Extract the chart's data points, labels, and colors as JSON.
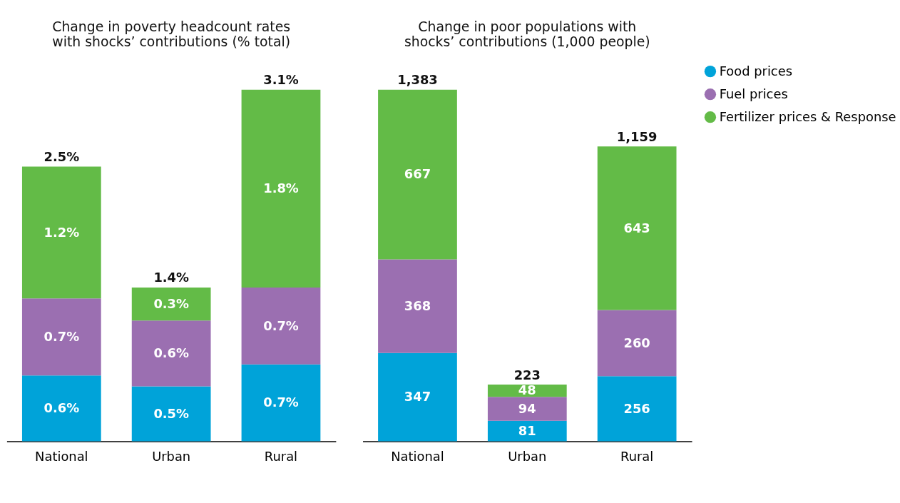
{
  "chart_data": [
    {
      "type": "bar",
      "title": "Change in poverty headcount rates with shocks’ contributions (% total)",
      "categories": [
        "National",
        "Urban",
        "Rural"
      ],
      "stacked": true,
      "legend": false,
      "series": [
        {
          "color": "#00a3d9",
          "values": [
            0.6,
            0.5,
            0.7
          ],
          "value_labels": [
            "0.6%",
            "0.5%",
            "0.7%"
          ]
        },
        {
          "color": "#9b6fb1",
          "values": [
            0.7,
            0.6,
            0.7
          ],
          "value_labels": [
            "0.7%",
            "0.6%",
            "0.7%"
          ]
        },
        {
          "color": "#63bb47",
          "values": [
            1.2,
            0.3,
            1.8
          ],
          "value_labels": [
            "1.2%",
            "0.3%",
            "1.8%"
          ]
        }
      ],
      "totals": [
        "2.5%",
        "1.4%",
        "3.1%"
      ]
    },
    {
      "type": "bar",
      "title": "Change in poor populations with shocks’ contributions (1,000 people)",
      "categories": [
        "National",
        "Urban",
        "Rural"
      ],
      "stacked": true,
      "legend": "right",
      "data_labels": true,
      "series": [
        {
          "name": "Food prices",
          "color": "#00a3d9",
          "values": [
            347,
            81,
            256
          ]
        },
        {
          "name": "Fuel prices",
          "color": "#9b6fb1",
          "values": [
            368,
            94,
            260
          ]
        },
        {
          "name": "Fertilizer prices & Response",
          "color": "#63bb47",
          "values": [
            667,
            48,
            643
          ]
        }
      ],
      "totals": [
        "1,383",
        "223",
        "1,159"
      ]
    }
  ]
}
